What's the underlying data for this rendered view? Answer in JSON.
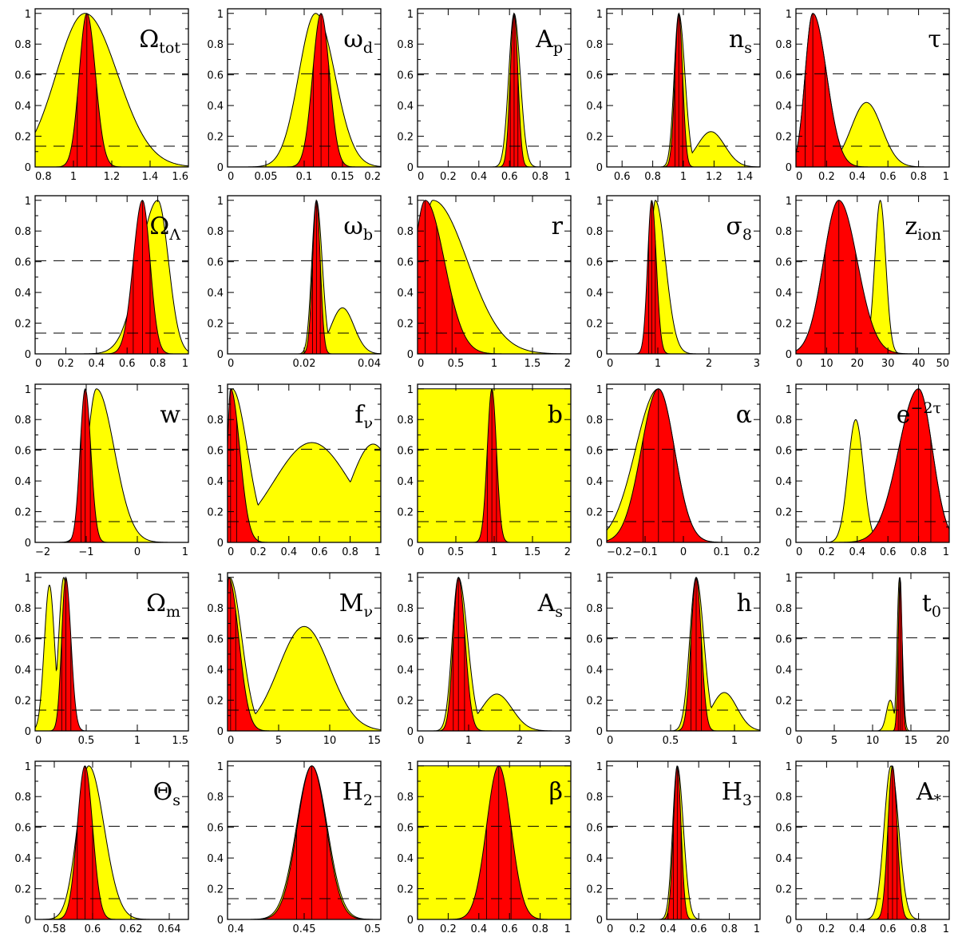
{
  "chart_data": [
    {
      "type": "area",
      "label_main": "Ω",
      "label_sub": "tot",
      "xlim": [
        0.8,
        1.6
      ],
      "xticks": [
        0.8,
        1,
        1.2,
        1.4,
        1.6
      ],
      "yellow": {
        "peak": 1.06,
        "sl": 0.15,
        "sr": 0.17,
        "bumps": []
      },
      "red": {
        "peak": 1.07,
        "sl": 0.04,
        "sr": 0.045,
        "bumps": []
      },
      "vlines": [
        1.02,
        1.07,
        1.12
      ]
    },
    {
      "type": "area",
      "label_main": "ω",
      "label_sub": "d",
      "xlim": [
        0,
        0.2
      ],
      "xticks": [
        0,
        0.05,
        0.1,
        0.15,
        0.2
      ],
      "yellow": {
        "peak": 0.115,
        "sl": 0.022,
        "sr": 0.025,
        "bumps": []
      },
      "red": {
        "peak": 0.122,
        "sl": 0.011,
        "sr": 0.011,
        "bumps": []
      },
      "vlines": [
        0.112,
        0.122,
        0.132
      ]
    },
    {
      "type": "area",
      "label_main": "A",
      "label_sub": "p",
      "xlim": [
        0,
        1
      ],
      "xticks": [
        0,
        0.2,
        0.4,
        0.6,
        0.8,
        1
      ],
      "yellow": {
        "peak": 0.63,
        "sl": 0.035,
        "sr": 0.04,
        "bumps": []
      },
      "red": {
        "peak": 0.63,
        "sl": 0.025,
        "sr": 0.025,
        "bumps": []
      },
      "vlines": [
        0.605,
        0.63,
        0.655
      ]
    },
    {
      "type": "area",
      "label_main": "n",
      "label_sub": "s",
      "xlim": [
        0.5,
        1.5
      ],
      "xticks": [
        0.6,
        0.8,
        1,
        1.2,
        1.4
      ],
      "yellow": {
        "peak": 0.97,
        "sl": 0.03,
        "sr": 0.04,
        "bumps": [
          [
            1.18,
            0.23,
            0.09
          ]
        ]
      },
      "red": {
        "peak": 0.97,
        "sl": 0.025,
        "sr": 0.025,
        "bumps": []
      },
      "vlines": [
        0.945,
        0.97,
        0.995
      ]
    },
    {
      "type": "area",
      "label_main": "τ",
      "label_sub": "",
      "xlim": [
        0,
        1
      ],
      "xticks": [
        0,
        0.2,
        0.4,
        0.6,
        0.8,
        1
      ],
      "yellow": {
        "peak": 0.11,
        "sl": 0.05,
        "sr": 0.09,
        "bumps": [
          [
            0.46,
            0.42,
            0.1
          ]
        ]
      },
      "red": {
        "peak": 0.11,
        "sl": 0.05,
        "sr": 0.09,
        "bumps": []
      },
      "vlines": [
        0.06,
        0.11,
        0.19
      ]
    },
    {
      "type": "area",
      "label_main": "Ω",
      "label_sub": "Λ",
      "xlim": [
        0,
        1
      ],
      "xticks": [
        0,
        0.2,
        0.4,
        0.6,
        0.8,
        1
      ],
      "yellow": {
        "peak": 0.8,
        "sl": 0.12,
        "sr": 0.07,
        "bumps": []
      },
      "red": {
        "peak": 0.7,
        "sl": 0.06,
        "sr": 0.05,
        "bumps": []
      },
      "vlines": [
        0.64,
        0.7,
        0.75
      ]
    },
    {
      "type": "area",
      "label_main": "ω",
      "label_sub": "b",
      "xlim": [
        0,
        0.04
      ],
      "xticks": [
        0,
        0.02,
        0.04
      ],
      "yellow": {
        "peak": 0.0232,
        "sl": 0.0012,
        "sr": 0.0015,
        "bumps": [
          [
            0.03,
            0.3,
            0.003
          ]
        ]
      },
      "red": {
        "peak": 0.0232,
        "sl": 0.001,
        "sr": 0.001,
        "bumps": []
      },
      "vlines": [
        0.0222,
        0.0232,
        0.0242
      ]
    },
    {
      "type": "area",
      "label_main": "r",
      "label_sub": "",
      "xlim": [
        0,
        2
      ],
      "xticks": [
        0,
        0.5,
        1,
        1.5,
        2
      ],
      "yellow": {
        "peak": 0.2,
        "sl": 0.15,
        "sr": 0.45,
        "bumps": []
      },
      "red": {
        "peak": 0.1,
        "sl": 0.15,
        "sr": 0.25,
        "bumps": []
      },
      "vlines": [
        0.1,
        0.25,
        0.45
      ]
    },
    {
      "type": "area",
      "label_main": "σ",
      "label_sub": "8",
      "xlim": [
        0,
        3
      ],
      "xticks": [
        0,
        1,
        2,
        3
      ],
      "yellow": {
        "peak": 0.95,
        "sl": 0.09,
        "sr": 0.2,
        "bumps": []
      },
      "red": {
        "peak": 0.88,
        "sl": 0.08,
        "sr": 0.09,
        "bumps": []
      },
      "vlines": [
        0.82,
        0.88,
        0.95
      ]
    },
    {
      "type": "area",
      "label_main": "z",
      "label_sub": "ion",
      "xlim": [
        0,
        50
      ],
      "xticks": [
        0,
        10,
        20,
        30,
        40,
        50
      ],
      "yellow": {
        "peak": 14,
        "sl": 5,
        "sr": 5,
        "bumps": [
          [
            27.5,
            1.0,
            1.8
          ]
        ]
      },
      "red": {
        "peak": 14,
        "sl": 5,
        "sr": 6,
        "bumps": []
      },
      "vlines": [
        9.5,
        14,
        19.5
      ]
    },
    {
      "type": "area",
      "label_main": "w",
      "label_sub": "",
      "xlim": [
        -2,
        1
      ],
      "xticks": [
        -2,
        -1,
        0,
        1
      ],
      "yellow": {
        "peak": -0.8,
        "sl": 0.18,
        "sr": 0.35,
        "bumps": []
      },
      "red": {
        "peak": -1.02,
        "sl": 0.1,
        "sr": 0.11,
        "bumps": []
      },
      "vlines": [
        -1.1,
        -1.02,
        -0.92
      ]
    },
    {
      "type": "area",
      "label_main": "f",
      "label_sub": "ν",
      "xlim": [
        0,
        1
      ],
      "xticks": [
        0,
        0.2,
        0.4,
        0.6,
        0.8,
        1
      ],
      "yellow": {
        "peak": 0.03,
        "sl": 0.03,
        "sr": 0.1,
        "bumps": [
          [
            0.55,
            0.65,
            0.25
          ],
          [
            0.95,
            0.64,
            0.15
          ]
        ]
      },
      "red": {
        "peak": 0.02,
        "sl": 0.02,
        "sr": 0.06,
        "bumps": []
      },
      "vlines": [
        0.02,
        0.06
      ]
    },
    {
      "type": "area",
      "label_main": "b",
      "label_sub": "",
      "xlim": [
        0,
        2
      ],
      "xticks": [
        0,
        0.5,
        1,
        1.5,
        2
      ],
      "yellow": {
        "flat": 1.0
      },
      "red": {
        "peak": 0.97,
        "sl": 0.06,
        "sr": 0.06,
        "bumps": []
      },
      "vlines": [
        0.91,
        0.97,
        1.03
      ]
    },
    {
      "type": "area",
      "label_main": "α",
      "label_sub": "",
      "xlim": [
        -0.2,
        0.2
      ],
      "xticks": [
        -0.2,
        -0.1,
        0,
        0.1,
        0.2
      ],
      "yellow": {
        "peak": -0.065,
        "sl": 0.06,
        "sr": 0.042,
        "bumps": []
      },
      "red": {
        "peak": -0.065,
        "sl": 0.045,
        "sr": 0.042,
        "bumps": []
      },
      "vlines": [
        -0.105,
        -0.065,
        -0.025
      ]
    },
    {
      "type": "area",
      "label_main": "e",
      "label_sub": "",
      "label_sup": "−2τ",
      "xlim": [
        0,
        1
      ],
      "xticks": [
        0,
        0.2,
        0.4,
        0.6,
        0.8,
        1
      ],
      "yellow": {
        "peak": 0.8,
        "sl": 0.13,
        "sr": 0.09,
        "bumps": [
          [
            0.39,
            0.8,
            0.05
          ]
        ]
      },
      "red": {
        "peak": 0.8,
        "sl": 0.13,
        "sr": 0.09,
        "bumps": []
      },
      "vlines": [
        0.68,
        0.8,
        0.88
      ]
    },
    {
      "type": "area",
      "label_main": "Ω",
      "label_sub": "m",
      "xlim": [
        0,
        1.5
      ],
      "xticks": [
        0,
        0.5,
        1,
        1.5
      ],
      "yellow": {
        "peak": 0.28,
        "sl": 0.05,
        "sr": 0.05,
        "bumps": [
          [
            0.14,
            0.95,
            0.05
          ]
        ]
      },
      "red": {
        "peak": 0.3,
        "sl": 0.04,
        "sr": 0.05,
        "bumps": []
      },
      "vlines": [
        0.26,
        0.3,
        0.35
      ]
    },
    {
      "type": "area",
      "label_main": "M",
      "label_sub": "ν",
      "xlim": [
        0,
        15
      ],
      "xticks": [
        0,
        5,
        10,
        15
      ],
      "yellow": {
        "peak": 0.2,
        "sl": 0.3,
        "sr": 1.2,
        "bumps": [
          [
            7.5,
            0.68,
            2.5
          ]
        ]
      },
      "red": {
        "peak": 0.1,
        "sl": 0.2,
        "sr": 1.0,
        "bumps": []
      },
      "vlines": [
        0.3,
        0.8
      ]
    },
    {
      "type": "area",
      "label_main": "A",
      "label_sub": "s",
      "xlim": [
        0,
        3
      ],
      "xticks": [
        0,
        1,
        2,
        3
      ],
      "yellow": {
        "peak": 0.8,
        "sl": 0.12,
        "sr": 0.18,
        "bumps": [
          [
            1.55,
            0.24,
            0.3
          ]
        ]
      },
      "red": {
        "peak": 0.8,
        "sl": 0.1,
        "sr": 0.13,
        "bumps": []
      },
      "vlines": [
        0.7,
        0.8,
        0.92
      ]
    },
    {
      "type": "area",
      "label_main": "h",
      "label_sub": "",
      "xlim": [
        0,
        1.2
      ],
      "xticks": [
        0,
        0.5,
        1
      ],
      "yellow": {
        "peak": 0.7,
        "sl": 0.05,
        "sr": 0.06,
        "bumps": [
          [
            0.92,
            0.25,
            0.1
          ]
        ]
      },
      "red": {
        "peak": 0.7,
        "sl": 0.04,
        "sr": 0.04,
        "bumps": []
      },
      "vlines": [
        0.66,
        0.7,
        0.74
      ]
    },
    {
      "type": "area",
      "label_main": "t",
      "label_sub": "0",
      "xlim": [
        0,
        20
      ],
      "xticks": [
        0,
        5,
        10,
        15,
        20
      ],
      "yellow": {
        "peak": 13.5,
        "sl": 0.3,
        "sr": 0.35,
        "bumps": [
          [
            12.3,
            0.2,
            0.5
          ]
        ]
      },
      "red": {
        "peak": 13.6,
        "sl": 0.25,
        "sr": 0.25,
        "bumps": []
      },
      "vlines": [
        13.35,
        13.6,
        13.85
      ]
    },
    {
      "type": "area",
      "label_main": "Θ",
      "label_sub": "s",
      "xlim": [
        0.57,
        0.65
      ],
      "xticks": [
        0.58,
        0.6,
        0.62,
        0.64
      ],
      "yellow": {
        "peak": 0.598,
        "sl": 0.006,
        "sr": 0.008,
        "bumps": []
      },
      "red": {
        "peak": 0.596,
        "sl": 0.004,
        "sr": 0.004,
        "bumps": []
      },
      "vlines": [
        0.592,
        0.596,
        0.6
      ]
    },
    {
      "type": "area",
      "label_main": "H",
      "label_sub": "2",
      "xlim": [
        0.4,
        0.5
      ],
      "xticks": [
        0.4,
        0.45,
        0.5
      ],
      "yellow": {
        "peak": 0.455,
        "sl": 0.01,
        "sr": 0.01,
        "bumps": []
      },
      "red": {
        "peak": 0.455,
        "sl": 0.0095,
        "sr": 0.0095,
        "bumps": []
      },
      "vlines": [
        0.445,
        0.455,
        0.465
      ]
    },
    {
      "type": "area",
      "label_main": "β",
      "label_sub": "",
      "xlim": [
        0,
        1
      ],
      "xticks": [
        0,
        0.2,
        0.4,
        0.6,
        0.8,
        1
      ],
      "yellow": {
        "flat": 1.0
      },
      "red": {
        "peak": 0.53,
        "sl": 0.08,
        "sr": 0.08,
        "bumps": []
      },
      "vlines": [
        0.45,
        0.53,
        0.61
      ]
    },
    {
      "type": "area",
      "label_main": "H",
      "label_sub": "3",
      "xlim": [
        0,
        1
      ],
      "xticks": [
        0,
        0.2,
        0.4,
        0.6,
        0.8,
        1
      ],
      "yellow": {
        "peak": 0.46,
        "sl": 0.03,
        "sr": 0.04,
        "bumps": []
      },
      "red": {
        "peak": 0.46,
        "sl": 0.025,
        "sr": 0.025,
        "bumps": []
      },
      "vlines": [
        0.435,
        0.46,
        0.485
      ]
    },
    {
      "type": "area",
      "label_main": "A",
      "label_sub": "*",
      "xlim": [
        0,
        1
      ],
      "xticks": [
        0,
        0.2,
        0.4,
        0.6,
        0.8,
        1
      ],
      "yellow": {
        "peak": 0.62,
        "sl": 0.045,
        "sr": 0.05,
        "bumps": []
      },
      "red": {
        "peak": 0.63,
        "sl": 0.03,
        "sr": 0.03,
        "bumps": []
      },
      "vlines": [
        0.6,
        0.63,
        0.66
      ]
    }
  ],
  "shared": {
    "yticks": [
      0,
      0.2,
      0.4,
      0.6,
      0.8,
      1
    ],
    "ylim": [
      0,
      1.03
    ],
    "dashed_levels": [
      0.607,
      0.135
    ],
    "colors": {
      "wide": "#ffff00",
      "narrow": "#ff0000",
      "line": "#000000"
    }
  }
}
